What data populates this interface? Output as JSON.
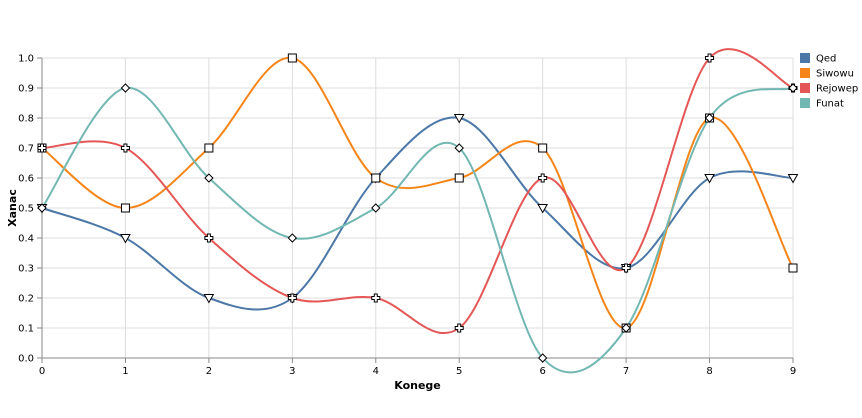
{
  "chart_data": {
    "type": "line",
    "interpolation": "smooth",
    "x": [
      0,
      1,
      2,
      3,
      4,
      5,
      6,
      7,
      8,
      9
    ],
    "xlabel": "Konege",
    "ylabel": "Xanac",
    "xlim": [
      0,
      9
    ],
    "ylim": [
      0,
      1
    ],
    "x_ticks": [
      "0",
      "1",
      "2",
      "3",
      "4",
      "5",
      "6",
      "7",
      "8",
      "9"
    ],
    "y_ticks": [
      "0.0",
      "0.1",
      "0.2",
      "0.3",
      "0.4",
      "0.5",
      "0.6",
      "0.7",
      "0.8",
      "0.9",
      "1.0"
    ],
    "grid": true,
    "legend_position": "right",
    "series": [
      {
        "name": "Qed",
        "color": "#4c78a8",
        "marker": "triangle-down",
        "values": [
          0.5,
          0.4,
          0.2,
          0.2,
          0.6,
          0.8,
          0.5,
          0.3,
          0.6,
          0.6
        ]
      },
      {
        "name": "Siwowu",
        "color": "#f58518",
        "marker": "square",
        "values": [
          0.7,
          0.5,
          0.7,
          1.0,
          0.6,
          0.6,
          0.7,
          0.1,
          0.8,
          0.3
        ]
      },
      {
        "name": "Rejowep",
        "color": "#e45756",
        "marker": "cross",
        "values": [
          0.7,
          0.7,
          0.4,
          0.2,
          0.2,
          0.1,
          0.6,
          0.3,
          1.0,
          0.9
        ]
      },
      {
        "name": "Funat",
        "color": "#72b7b2",
        "marker": "diamond",
        "values": [
          0.5,
          0.9,
          0.6,
          0.4,
          0.5,
          0.7,
          0.0,
          0.1,
          0.8,
          0.9
        ]
      }
    ]
  }
}
